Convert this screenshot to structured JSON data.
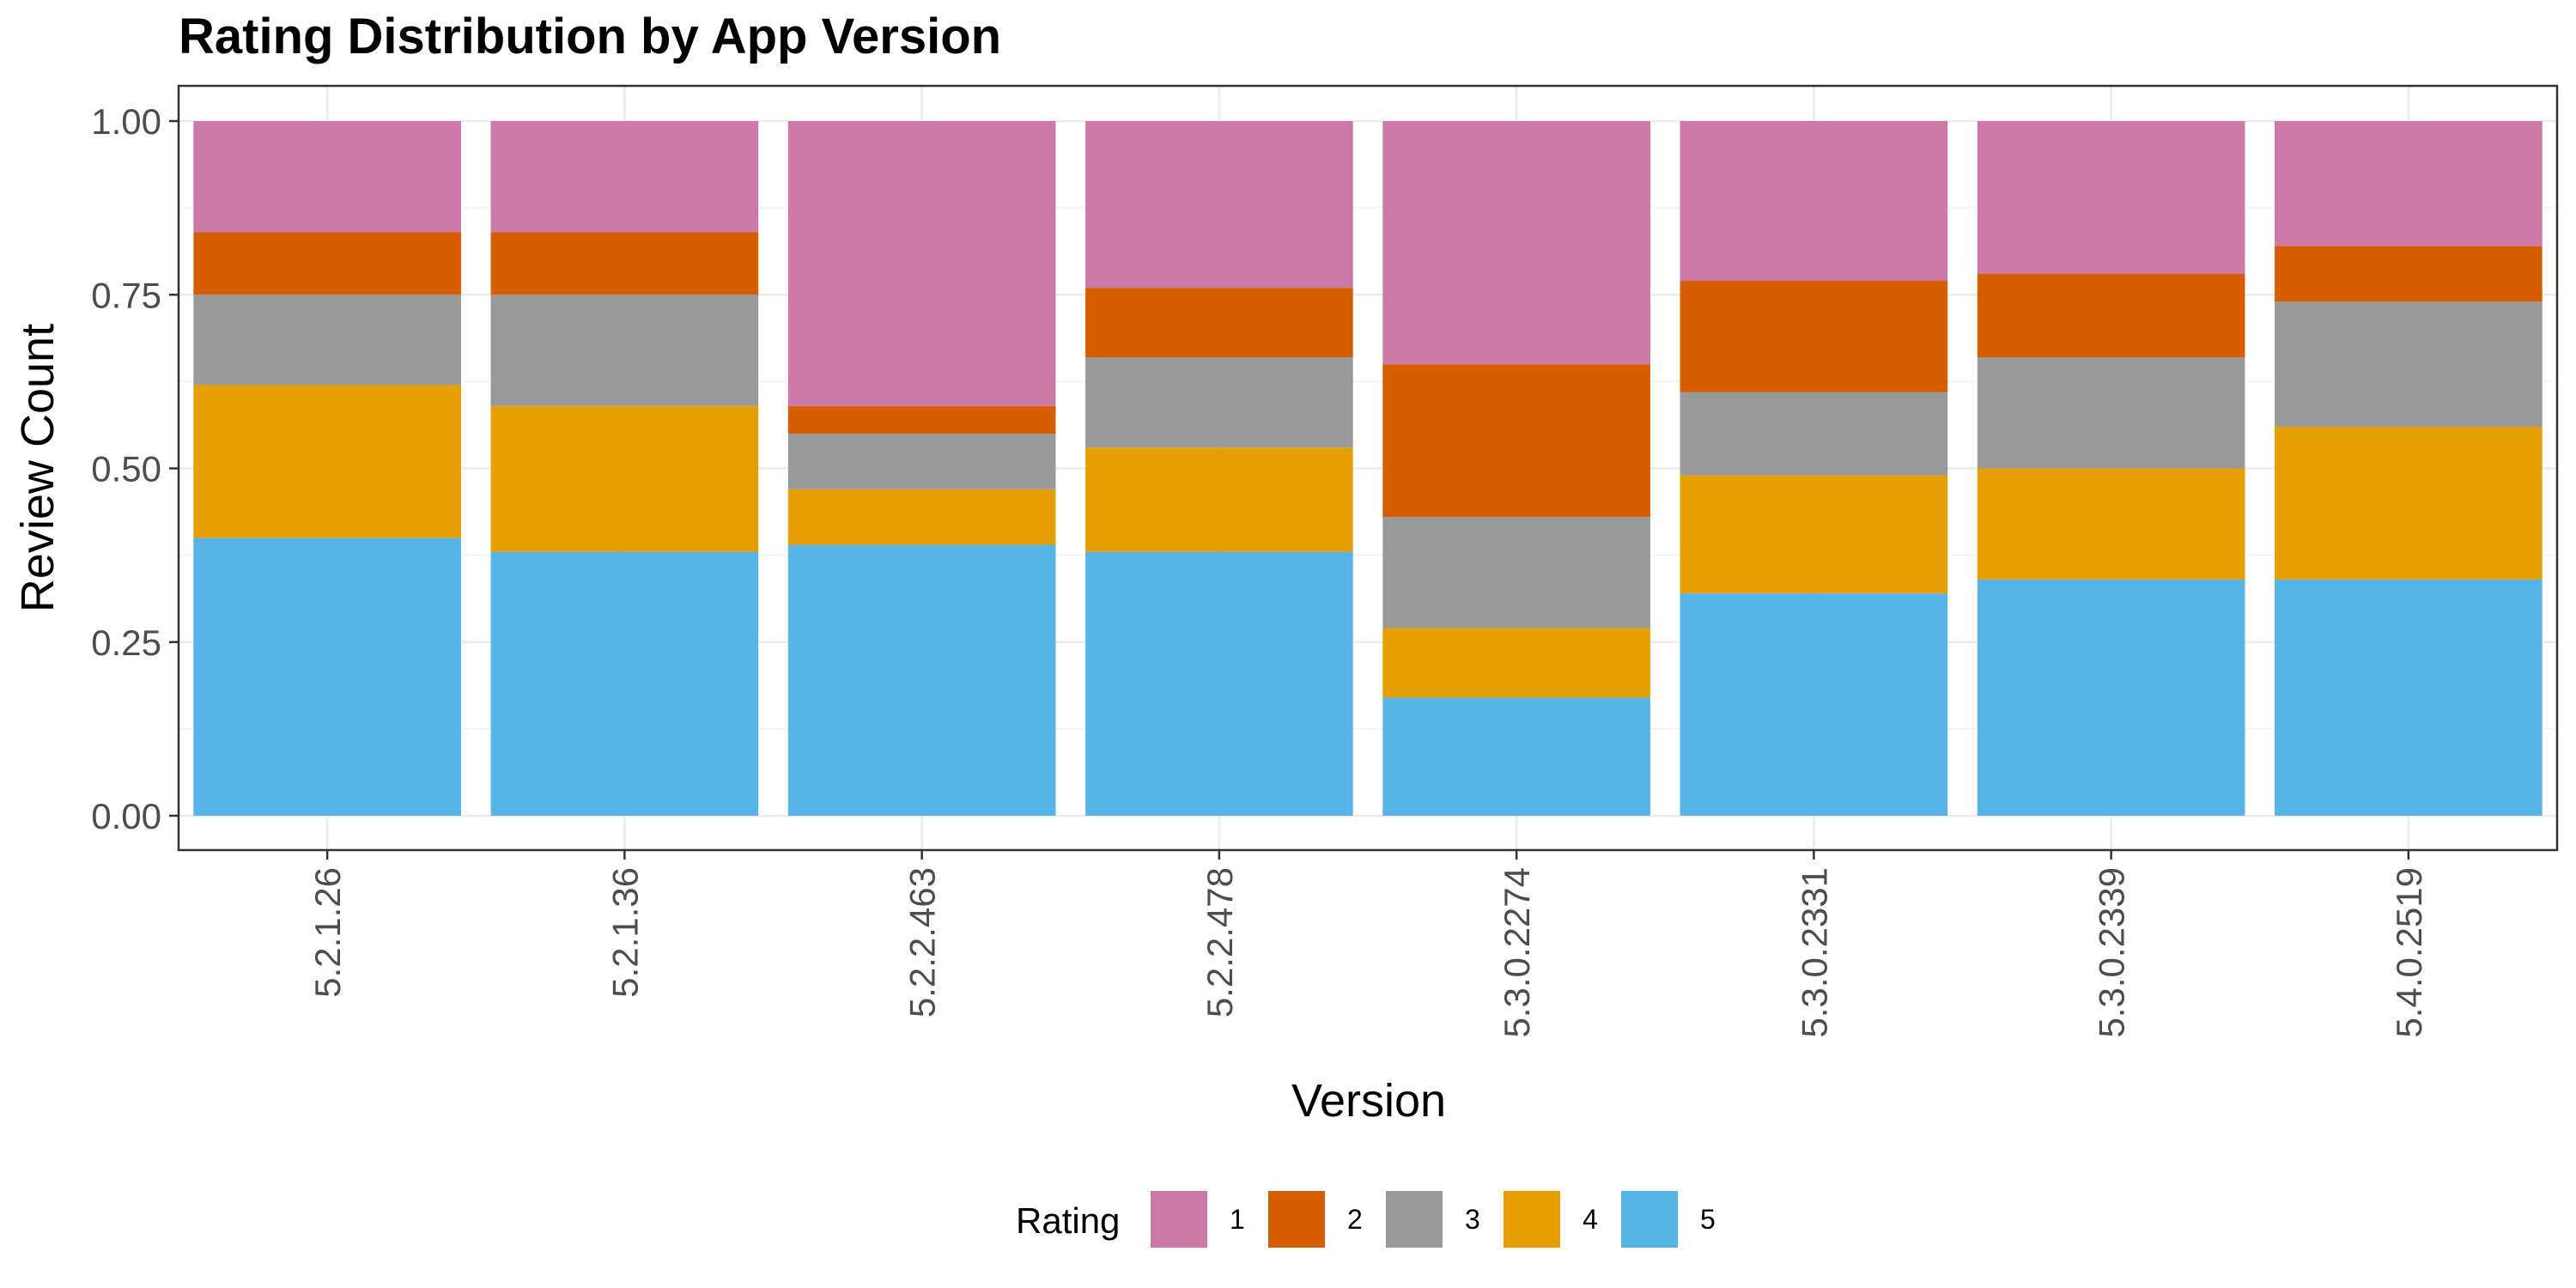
{
  "chart_data": {
    "type": "bar",
    "stacked": true,
    "title": "Rating Distribution by App Version",
    "xlabel": "Version",
    "ylabel": "Review Count",
    "ylim": [
      0,
      1
    ],
    "yticks": [
      "0.00",
      "0.25",
      "0.50",
      "0.75",
      "1.00"
    ],
    "categories": [
      "5.2.1.26",
      "5.2.1.36",
      "5.2.2.463",
      "5.2.2.478",
      "5.3.0.2274",
      "5.3.0.2331",
      "5.3.0.2339",
      "5.4.0.2519"
    ],
    "grid": true,
    "legend": {
      "title": "Rating",
      "position": "bottom"
    },
    "series": [
      {
        "name": "5",
        "color": "#56B4E9",
        "values": [
          0.4,
          0.38,
          0.39,
          0.38,
          0.17,
          0.32,
          0.34,
          0.34
        ]
      },
      {
        "name": "4",
        "color": "#E69F00",
        "values": [
          0.22,
          0.21,
          0.08,
          0.15,
          0.1,
          0.17,
          0.16,
          0.22
        ]
      },
      {
        "name": "3",
        "color": "#999999",
        "values": [
          0.13,
          0.16,
          0.08,
          0.13,
          0.16,
          0.12,
          0.16,
          0.18
        ]
      },
      {
        "name": "2",
        "color": "#D55E00",
        "values": [
          0.09,
          0.09,
          0.04,
          0.1,
          0.22,
          0.16,
          0.12,
          0.08
        ]
      },
      {
        "name": "1",
        "color": "#CC79A7",
        "values": [
          0.16,
          0.16,
          0.41,
          0.24,
          0.35,
          0.23,
          0.22,
          0.18
        ]
      }
    ],
    "legend_order": [
      "1",
      "2",
      "3",
      "4",
      "5"
    ]
  }
}
